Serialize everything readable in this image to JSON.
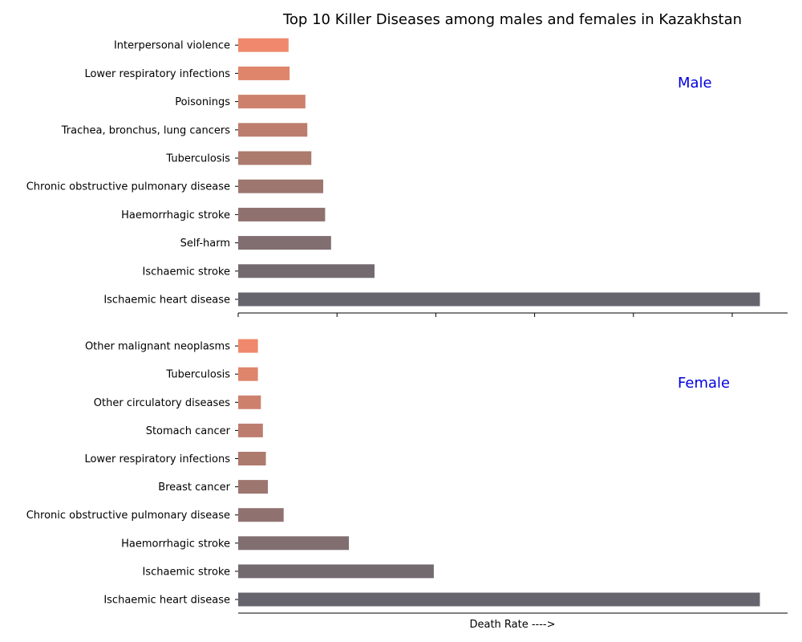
{
  "chart_data": [
    {
      "type": "bar",
      "orientation": "horizontal",
      "title": "Top 10 Killer Diseases among males and females in Kazakhstan",
      "panel_label": "Male",
      "categories": [
        "Ischaemic heart disease",
        "Ischaemic stroke",
        "Self-harm",
        "Haemorrhagic stroke",
        "Chronic obstructive pulmonary disease",
        "Tuberculosis",
        "Trachea, bronchus, lung cancers",
        "Poisonings",
        "Lower respiratory infections",
        "Interpersonal violence"
      ],
      "values": [
        264,
        69,
        47,
        44,
        43,
        37,
        35,
        34,
        26,
        25.5
      ],
      "xlim": [
        0,
        278
      ],
      "colors": [
        "#66656e",
        "#736a70",
        "#806e71",
        "#8f7270",
        "#9d766f",
        "#ad7a6e",
        "#bd7d6e",
        "#cd816d",
        "#de856c",
        "#ef886c"
      ]
    },
    {
      "type": "bar",
      "orientation": "horizontal",
      "panel_label": "Female",
      "xlabel": "Death Rate ---->",
      "categories": [
        "Ischaemic heart disease",
        "Ischaemic stroke",
        "Haemorrhagic stroke",
        "Chronic obstructive pulmonary disease",
        "Breast cancer",
        "Lower respiratory infections",
        "Stomach cancer",
        "Other circulatory diseases",
        "Tuberculosis",
        "Other malignant neoplasms"
      ],
      "values": [
        264,
        99,
        56,
        23,
        15,
        14,
        12.5,
        11.5,
        10,
        10
      ],
      "xlim": [
        0,
        278
      ],
      "colors": [
        "#66656e",
        "#736a70",
        "#806e71",
        "#8f7270",
        "#9d766f",
        "#ad7a6e",
        "#bd7d6e",
        "#cd816d",
        "#de856c",
        "#ef886c"
      ]
    }
  ],
  "label_color": "#0000dd"
}
